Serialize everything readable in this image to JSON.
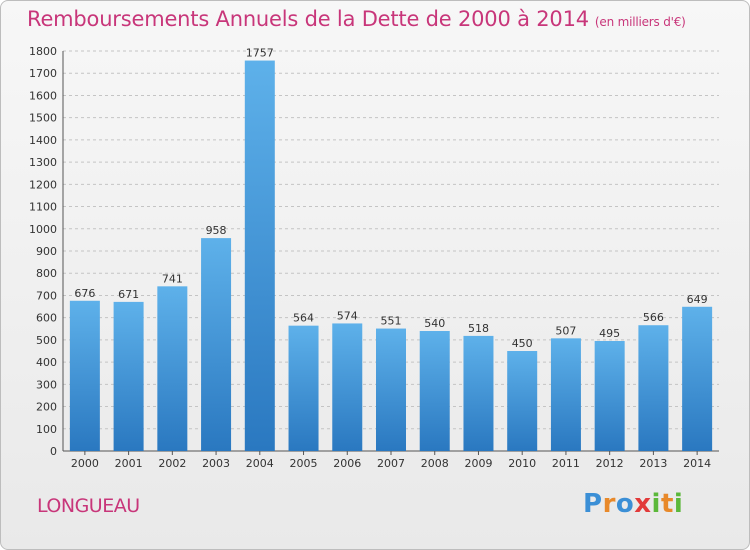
{
  "title": "Remboursements Annuels de la Dette de 2000 à 2014",
  "subtitle": "(en milliers d'€)",
  "commune": "LONGUEAU",
  "logo": {
    "letters": [
      "P",
      "r",
      "o",
      "x",
      "i",
      "t",
      "i"
    ],
    "colors": [
      "#3b8fd6",
      "#e8892a",
      "#3b8fd6",
      "#e23a3a",
      "#5bb83a",
      "#e8892a",
      "#5bb83a"
    ]
  },
  "colors": {
    "bar_top": "#5eb1ea",
    "bar_bottom": "#2a78c0",
    "accent": "#c8367a"
  },
  "chart_data": {
    "type": "bar",
    "categories": [
      "2000",
      "2001",
      "2002",
      "2003",
      "2004",
      "2005",
      "2006",
      "2007",
      "2008",
      "2009",
      "2010",
      "2011",
      "2012",
      "2013",
      "2014"
    ],
    "values": [
      676,
      671,
      741,
      958,
      1757,
      564,
      574,
      551,
      540,
      518,
      450,
      507,
      495,
      566,
      649
    ],
    "ylim": [
      0,
      1800
    ],
    "yticks": [
      0,
      100,
      200,
      300,
      400,
      500,
      600,
      700,
      800,
      900,
      1000,
      1100,
      1200,
      1300,
      1400,
      1500,
      1600,
      1700,
      1800
    ],
    "grid": true,
    "xlabel": "",
    "ylabel": ""
  }
}
